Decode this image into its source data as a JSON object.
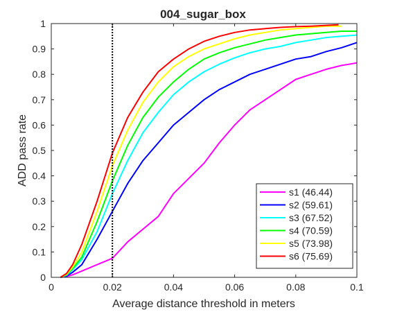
{
  "chart_data": {
    "type": "line",
    "title": "004_sugar_box",
    "xlabel": "Average distance threshold in meters",
    "ylabel": "ADD pass rate",
    "xlim": [
      0,
      0.1
    ],
    "ylim": [
      0,
      1
    ],
    "xticks": [
      "0",
      "0.02",
      "0.04",
      "0.06",
      "0.08",
      "0.1"
    ],
    "yticks": [
      "0",
      "0.1",
      "0.2",
      "0.3",
      "0.4",
      "0.5",
      "0.6",
      "0.7",
      "0.8",
      "0.9",
      "1"
    ],
    "grid": false,
    "legend_position": "bottom-right",
    "reference_line": {
      "x": 0.02,
      "style": "dotted",
      "color": "#000000"
    },
    "series": [
      {
        "name": "s1 (46.44)",
        "color": "#ff00ff",
        "x": [
          0.003,
          0.005,
          0.007,
          0.01,
          0.015,
          0.02,
          0.025,
          0.03,
          0.035,
          0.04,
          0.045,
          0.05,
          0.055,
          0.06,
          0.065,
          0.07,
          0.075,
          0.08,
          0.085,
          0.09,
          0.095,
          0.1
        ],
        "y": [
          0,
          0.003,
          0.01,
          0.025,
          0.05,
          0.075,
          0.14,
          0.19,
          0.24,
          0.33,
          0.39,
          0.45,
          0.53,
          0.6,
          0.66,
          0.7,
          0.74,
          0.78,
          0.8,
          0.82,
          0.835,
          0.845
        ]
      },
      {
        "name": "s2 (59.61)",
        "color": "#0000ff",
        "x": [
          0.003,
          0.005,
          0.007,
          0.01,
          0.015,
          0.02,
          0.025,
          0.03,
          0.035,
          0.04,
          0.045,
          0.05,
          0.055,
          0.06,
          0.065,
          0.07,
          0.075,
          0.08,
          0.085,
          0.09,
          0.095,
          0.1
        ],
        "y": [
          0,
          0.005,
          0.02,
          0.05,
          0.15,
          0.26,
          0.37,
          0.46,
          0.53,
          0.6,
          0.65,
          0.7,
          0.74,
          0.77,
          0.8,
          0.82,
          0.84,
          0.86,
          0.87,
          0.89,
          0.905,
          0.925
        ]
      },
      {
        "name": "s3 (67.52)",
        "color": "#00ffff",
        "x": [
          0.003,
          0.005,
          0.007,
          0.01,
          0.015,
          0.02,
          0.025,
          0.03,
          0.035,
          0.04,
          0.045,
          0.05,
          0.055,
          0.06,
          0.065,
          0.07,
          0.075,
          0.08,
          0.085,
          0.09,
          0.095,
          0.1
        ],
        "y": [
          0,
          0.008,
          0.03,
          0.07,
          0.18,
          0.33,
          0.46,
          0.57,
          0.65,
          0.72,
          0.77,
          0.81,
          0.84,
          0.865,
          0.885,
          0.9,
          0.91,
          0.925,
          0.935,
          0.945,
          0.95,
          0.955
        ]
      },
      {
        "name": "s4 (70.59)",
        "color": "#00ff00",
        "x": [
          0.003,
          0.005,
          0.007,
          0.01,
          0.015,
          0.02,
          0.025,
          0.03,
          0.035,
          0.04,
          0.045,
          0.05,
          0.055,
          0.06,
          0.065,
          0.07,
          0.075,
          0.08,
          0.085,
          0.09,
          0.095,
          0.1
        ],
        "y": [
          0,
          0.01,
          0.035,
          0.08,
          0.22,
          0.38,
          0.52,
          0.63,
          0.71,
          0.77,
          0.82,
          0.86,
          0.885,
          0.905,
          0.92,
          0.935,
          0.945,
          0.955,
          0.96,
          0.965,
          0.97,
          0.97
        ]
      },
      {
        "name": "s5 (73.98)",
        "color": "#ffff00",
        "x": [
          0.003,
          0.005,
          0.007,
          0.01,
          0.015,
          0.02,
          0.025,
          0.03,
          0.035,
          0.04,
          0.045,
          0.05,
          0.055,
          0.06,
          0.065,
          0.07,
          0.075,
          0.08,
          0.085,
          0.09,
          0.095
        ],
        "y": [
          0,
          0.012,
          0.04,
          0.1,
          0.26,
          0.44,
          0.58,
          0.69,
          0.77,
          0.83,
          0.87,
          0.9,
          0.92,
          0.94,
          0.955,
          0.965,
          0.975,
          0.98,
          0.985,
          0.99,
          0.99
        ]
      },
      {
        "name": "s6 (75.69)",
        "color": "#ff0000",
        "x": [
          0.003,
          0.005,
          0.007,
          0.01,
          0.015,
          0.02,
          0.025,
          0.03,
          0.035,
          0.04,
          0.045,
          0.05,
          0.055,
          0.06,
          0.065,
          0.07,
          0.075,
          0.08,
          0.085,
          0.09,
          0.094
        ],
        "y": [
          0,
          0.015,
          0.05,
          0.13,
          0.3,
          0.49,
          0.63,
          0.73,
          0.81,
          0.86,
          0.9,
          0.93,
          0.95,
          0.965,
          0.975,
          0.98,
          0.985,
          0.988,
          0.99,
          0.993,
          0.995
        ]
      }
    ]
  }
}
